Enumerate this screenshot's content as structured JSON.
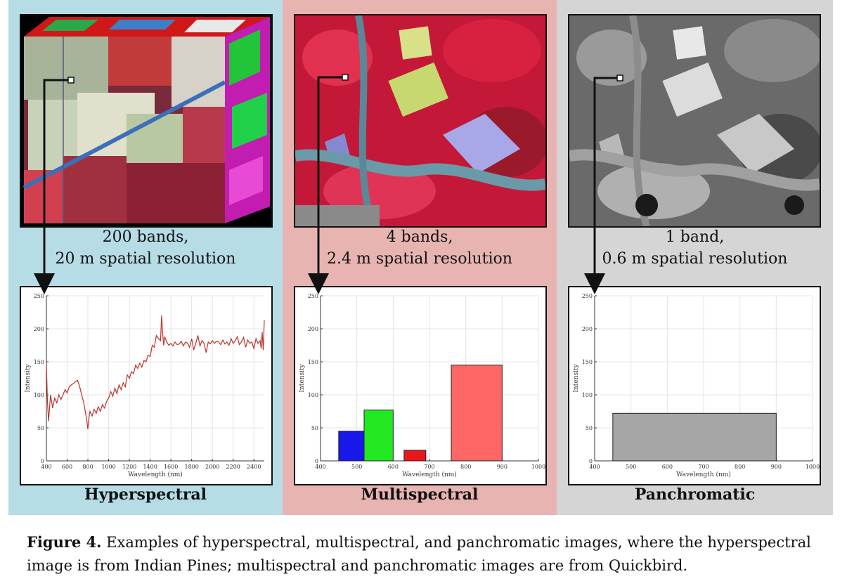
{
  "panels": [
    {
      "id": "hyperspectral",
      "caption_line1": "200 bands,",
      "caption_line2": "20 m spatial resolution",
      "title": "Hyperspectral",
      "background_color": "#b6dde6"
    },
    {
      "id": "multispectral",
      "caption_line1": "4 bands,",
      "caption_line2": "2.4 m spatial resolution",
      "title": "Multispectral",
      "background_color": "#e8b4b2"
    },
    {
      "id": "panchromatic",
      "caption_line1": "1 band,",
      "caption_line2": "0.6 m spatial resolution",
      "title": "Panchromatic",
      "background_color": "#d5d5d5"
    }
  ],
  "figure_caption": {
    "label": "Figure 4.",
    "text": " Examples of hyperspectral, multispectral, and panchromatic images, where the hyperspectral image is from Indian Pines; multispectral and panchromatic images are from Quickbird."
  },
  "chart_data": [
    {
      "type": "line",
      "xlabel": "Wavelength (nm)",
      "ylabel": "Intensity",
      "xlim": [
        400,
        2500
      ],
      "ylim": [
        0,
        250
      ],
      "xticks": [
        400,
        600,
        800,
        1000,
        1200,
        1400,
        1600,
        1800,
        2000,
        2200,
        2400
      ],
      "yticks": [
        0,
        50,
        100,
        150,
        200,
        250
      ],
      "grid": true,
      "line_color": "#c0302a",
      "series": [
        {
          "x": [
            400,
            410,
            420,
            440,
            460,
            480,
            500,
            520,
            540,
            560,
            580,
            600,
            620,
            640,
            660,
            680,
            700,
            720,
            740,
            760,
            780,
            790,
            800,
            810,
            820,
            840,
            860,
            880,
            900,
            920,
            940,
            960,
            980,
            1000,
            1020,
            1040,
            1060,
            1080,
            1100,
            1120,
            1140,
            1160,
            1180,
            1200,
            1220,
            1240,
            1260,
            1280,
            1300,
            1320,
            1340,
            1360,
            1380,
            1400,
            1420,
            1440,
            1460,
            1480,
            1500,
            1510,
            1520,
            1530,
            1540,
            1560,
            1580,
            1600,
            1620,
            1640,
            1660,
            1680,
            1700,
            1720,
            1740,
            1760,
            1780,
            1800,
            1820,
            1840,
            1860,
            1880,
            1900,
            1920,
            1940,
            1960,
            1980,
            2000,
            2020,
            2040,
            2060,
            2080,
            2100,
            2120,
            2140,
            2160,
            2180,
            2200,
            2220,
            2240,
            2260,
            2280,
            2300,
            2320,
            2340,
            2360,
            2380,
            2400,
            2420,
            2440,
            2460,
            2470,
            2480,
            2490,
            2500
          ],
          "y": [
            145,
            90,
            60,
            100,
            80,
            95,
            88,
            100,
            93,
            100,
            108,
            103,
            112,
            115,
            117,
            120,
            122,
            113,
            100,
            88,
            70,
            60,
            48,
            65,
            75,
            68,
            78,
            72,
            82,
            75,
            85,
            80,
            90,
            95,
            105,
            98,
            110,
            102,
            115,
            108,
            118,
            112,
            130,
            125,
            135,
            132,
            145,
            140,
            148,
            142,
            152,
            150,
            160,
            158,
            175,
            172,
            190,
            185,
            182,
            220,
            195,
            175,
            188,
            180,
            175,
            178,
            174,
            180,
            176,
            177,
            181,
            174,
            180,
            178,
            172,
            185,
            168,
            178,
            190,
            174,
            182,
            178,
            164,
            180,
            177,
            182,
            178,
            181,
            180,
            176,
            183,
            177,
            180,
            175,
            185,
            178,
            182,
            188,
            176,
            180,
            187,
            172,
            183,
            178,
            180,
            170,
            185,
            178,
            182,
            170,
            195,
            168,
            213
          ]
        }
      ]
    },
    {
      "type": "bar",
      "xlabel": "Wavelength (nm)",
      "ylabel": "Intensity",
      "xlim": [
        400,
        1000
      ],
      "ylim": [
        0,
        250
      ],
      "xticks": [
        400,
        500,
        600,
        700,
        800,
        900,
        1000
      ],
      "yticks": [
        0,
        50,
        100,
        150,
        200,
        250
      ],
      "grid": true,
      "bars": [
        {
          "x_start": 450,
          "x_end": 520,
          "value": 45,
          "color": "#1818e8"
        },
        {
          "x_start": 520,
          "x_end": 600,
          "value": 77,
          "color": "#22e822"
        },
        {
          "x_start": 630,
          "x_end": 690,
          "value": 16,
          "color": "#e81818"
        },
        {
          "x_start": 760,
          "x_end": 900,
          "value": 145,
          "color": "#ff6666"
        }
      ]
    },
    {
      "type": "bar",
      "xlabel": "Wavelength (nm)",
      "ylabel": "Intensity",
      "xlim": [
        400,
        1000
      ],
      "ylim": [
        0,
        250
      ],
      "xticks": [
        400,
        500,
        600,
        700,
        800,
        900,
        1000
      ],
      "yticks": [
        0,
        50,
        100,
        150,
        200,
        250
      ],
      "grid": true,
      "bars": [
        {
          "x_start": 450,
          "x_end": 900,
          "value": 72,
          "color": "#a6a6a6"
        }
      ]
    }
  ]
}
